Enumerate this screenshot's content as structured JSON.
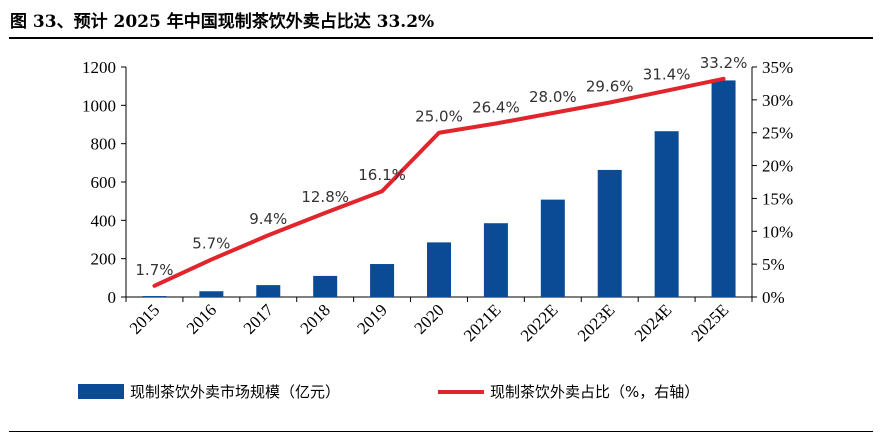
{
  "title": "图 33、预计 2025 年中国现制茶饮外卖占比达 33.2%",
  "chart_data": {
    "type": "bar+line",
    "categories": [
      "2015",
      "2016",
      "2017",
      "2018",
      "2019",
      "2020",
      "2021E",
      "2022E",
      "2023E",
      "2024E",
      "2025E"
    ],
    "series": [
      {
        "name": "现制茶饮外卖市场规模（亿元）",
        "type": "bar",
        "axis": "left",
        "color": "#0b4a94",
        "values": [
          5,
          30,
          62,
          110,
          172,
          285,
          385,
          508,
          663,
          865,
          1130
        ]
      },
      {
        "name": "现制茶饮外卖占比（%，右轴）",
        "type": "line",
        "axis": "right",
        "color": "#e0262c",
        "values": [
          1.7,
          5.7,
          9.4,
          12.8,
          16.1,
          25.0,
          26.4,
          28.0,
          29.6,
          31.4,
          33.2
        ],
        "labels": [
          "1.7%",
          "5.7%",
          "9.4%",
          "12.8%",
          "16.1%",
          "25.0%",
          "26.4%",
          "28.0%",
          "29.6%",
          "31.4%",
          "33.2%"
        ]
      }
    ],
    "y_left": {
      "ylim": [
        0,
        1200
      ],
      "ticks": [
        "0",
        "200",
        "400",
        "600",
        "800",
        "1000",
        "1200"
      ],
      "values": [
        0,
        200,
        400,
        600,
        800,
        1000,
        1200
      ]
    },
    "y_right": {
      "ylim": [
        0,
        35
      ],
      "ticks": [
        "0%",
        "5%",
        "10%",
        "15%",
        "20%",
        "25%",
        "30%",
        "35%"
      ],
      "values": [
        0,
        5,
        10,
        15,
        20,
        25,
        30,
        35
      ]
    },
    "grid": false,
    "legend_position": "bottom"
  }
}
